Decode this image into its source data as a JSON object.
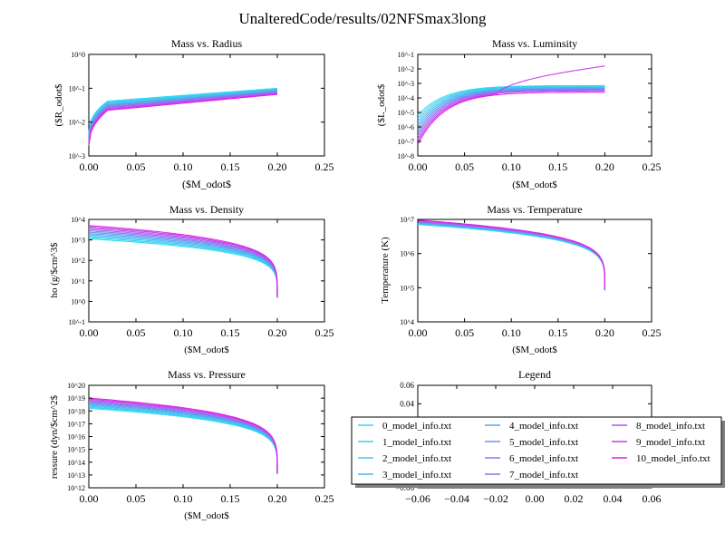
{
  "figure": {
    "suptitle": "UnalteredCode/results/02NFSmax3long"
  },
  "chart_data": [
    {
      "id": "radius",
      "type": "line",
      "title": "Mass vs. Radius",
      "xlabel": "($M_odot$",
      "ylabel": "($R_odot$",
      "xlim": [
        0,
        0.25
      ],
      "xticks": [
        "0.00",
        "0.05",
        "0.10",
        "0.15",
        "0.20",
        "0.25"
      ],
      "yscale": "log",
      "ylim_exp": [
        -3,
        0
      ],
      "yticks": [
        "10^0",
        "10^-1",
        "10^-2",
        "10^-3"
      ],
      "curve": {
        "shape": "rise",
        "start_exp": [
          -2.3,
          -2.7
        ],
        "end_exp": [
          -1.0,
          -1.18
        ],
        "mid_exp": [
          -1.38,
          -1.65
        ]
      }
    },
    {
      "id": "luminosity",
      "type": "line",
      "title": "Mass vs. Luminsity",
      "xlabel": "($M_odot$",
      "ylabel": "($L_odot$",
      "xlim": [
        0,
        0.25
      ],
      "xticks": [
        "0.00",
        "0.05",
        "0.10",
        "0.15",
        "0.20",
        "0.25"
      ],
      "yscale": "log",
      "ylim_exp": [
        -8,
        -1
      ],
      "yticks": [
        "10^-1",
        "10^-2",
        "10^-3",
        "10^-4",
        "10^-5",
        "10^-6",
        "10^-7",
        "10^-8"
      ],
      "curve": {
        "shape": "lum",
        "start_exp": [
          -5.2,
          -7.2
        ],
        "end_exp": [
          -3.15,
          -3.6
        ],
        "outlier_end_exp": -1.8,
        "outlier_split_x": 0.085
      }
    },
    {
      "id": "density",
      "type": "line",
      "title": "Mass vs. Density",
      "xlabel": "($M_odot$",
      "ylabel": "ho (g/$cm^3$",
      "xlim": [
        0,
        0.25
      ],
      "xticks": [
        "0.00",
        "0.05",
        "0.10",
        "0.15",
        "0.20",
        "0.25"
      ],
      "yscale": "log",
      "ylim_exp": [
        -1,
        4
      ],
      "yticks": [
        "10^4",
        "10^3",
        "10^2",
        "10^1",
        "10^0",
        "10^-1"
      ],
      "curve": {
        "shape": "fall",
        "start_exp": [
          3.05,
          3.7
        ],
        "end_exp": [
          -0.1,
          -0.1
        ]
      }
    },
    {
      "id": "temperature",
      "type": "line",
      "title": "Mass vs. Temperature",
      "xlabel": "($M_odot$",
      "ylabel": "Temperature (K)",
      "xlim": [
        0,
        0.25
      ],
      "xticks": [
        "0.00",
        "0.05",
        "0.10",
        "0.15",
        "0.20",
        "0.25"
      ],
      "yscale": "log",
      "ylim_exp": [
        4,
        7
      ],
      "yticks": [
        "10^7",
        "10^6",
        "10^5",
        "10^4"
      ],
      "curve": {
        "shape": "fall",
        "start_exp": [
          6.85,
          6.98
        ],
        "end_exp": [
          4.75,
          4.75
        ]
      }
    },
    {
      "id": "pressure",
      "type": "line",
      "title": "Mass vs. Pressure",
      "xlabel": "($M_odot$",
      "ylabel": "ressure (dyn/$cm^2$",
      "xlim": [
        0,
        0.25
      ],
      "xticks": [
        "0.00",
        "0.05",
        "0.10",
        "0.15",
        "0.20",
        "0.25"
      ],
      "yscale": "log",
      "ylim_exp": [
        12,
        20
      ],
      "yticks": [
        "10^20",
        "10^19",
        "10^18",
        "10^17",
        "10^16",
        "10^15",
        "10^14",
        "10^13",
        "10^12"
      ],
      "curve": {
        "shape": "fall",
        "start_exp": [
          18.2,
          19.0
        ],
        "end_exp": [
          12.6,
          12.6
        ]
      }
    },
    {
      "id": "legend_axes",
      "type": "line",
      "title": "Legend",
      "xticks": [
        "−0.06",
        "−0.04",
        "−0.02",
        "0.00",
        "0.02",
        "0.04",
        "0.06"
      ],
      "yticks": [
        "0.06",
        "0.04",
        "−0.06"
      ]
    }
  ],
  "series": [
    {
      "name": "0_model_info.txt",
      "color": "#2fdcf2"
    },
    {
      "name": "1_model_info.txt",
      "color": "#37d0f3"
    },
    {
      "name": "2_model_info.txt",
      "color": "#40c8f2"
    },
    {
      "name": "3_model_info.txt",
      "color": "#4ab8f1"
    },
    {
      "name": "4_model_info.txt",
      "color": "#5aa6f0"
    },
    {
      "name": "5_model_info.txt",
      "color": "#6a93ef"
    },
    {
      "name": "6_model_info.txt",
      "color": "#8080ee"
    },
    {
      "name": "7_model_info.txt",
      "color": "#9a6cee"
    },
    {
      "name": "8_model_info.txt",
      "color": "#b655ee"
    },
    {
      "name": "9_model_info.txt",
      "color": "#cc3cec"
    },
    {
      "name": "10_model_info.txt",
      "color": "#e020e8"
    }
  ]
}
